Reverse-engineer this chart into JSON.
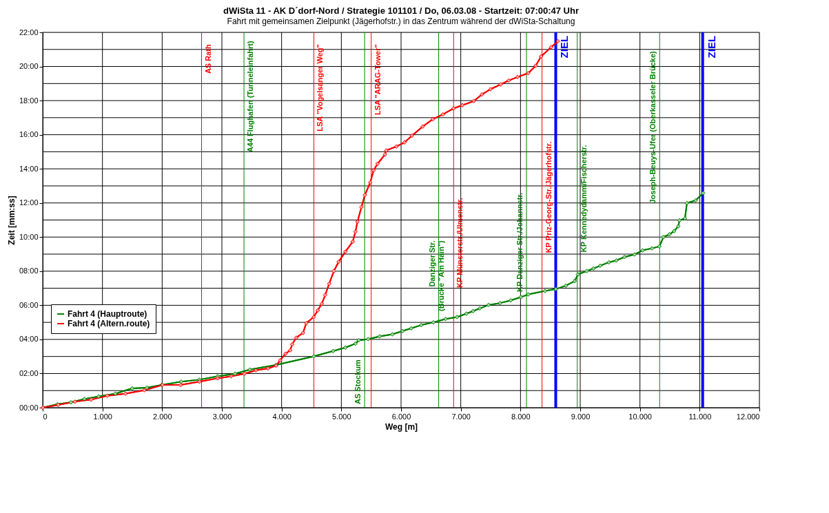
{
  "chart_data": {
    "type": "line",
    "title": "dWiSta 11 - AK D´dorf-Nord / Strategie 101101 / Do, 06.03.08 - Startzeit: 07:00:47 Uhr",
    "subtitle": "Fahrt mit gemeinsamen Zielpunkt (Jägerhofstr.) in das Zentrum während der dWiSta-Schaltung",
    "xlabel": "Weg [m]",
    "ylabel": "Zeit [mm:ss]",
    "xlim": [
      0,
      12000
    ],
    "xticks": [
      0,
      {
        "value": 1000,
        "label": "1.000"
      },
      {
        "value": 2000,
        "label": "2.000"
      },
      {
        "value": 3000,
        "label": "3.000"
      },
      {
        "value": 4000,
        "label": "4.000"
      },
      {
        "value": 5000,
        "label": "5.000"
      },
      {
        "value": 6000,
        "label": "6.000"
      },
      {
        "value": 7000,
        "label": "7.000"
      },
      {
        "value": 8000,
        "label": "8.000"
      },
      {
        "value": 9000,
        "label": "9.000"
      },
      {
        "value": 10000,
        "label": "10.000"
      },
      {
        "value": 11000,
        "label": "11.000"
      },
      {
        "value": 12000,
        "label": "12.000"
      }
    ],
    "ylim": [
      0,
      22
    ],
    "yticks": [
      {
        "value": 0,
        "label": "00:00"
      },
      {
        "value": 1,
        "label": null
      },
      {
        "value": 2,
        "label": "02:00"
      },
      {
        "value": 3,
        "label": null
      },
      {
        "value": 4,
        "label": "04:00"
      },
      {
        "value": 5,
        "label": null
      },
      {
        "value": 6,
        "label": "06:00"
      },
      {
        "value": 7,
        "label": null
      },
      {
        "value": 8,
        "label": "08:00"
      },
      {
        "value": 9,
        "label": null
      },
      {
        "value": 10,
        "label": "10:00"
      },
      {
        "value": 11,
        "label": null
      },
      {
        "value": 12,
        "label": "12:00"
      },
      {
        "value": 13,
        "label": null
      },
      {
        "value": 14,
        "label": "14:00"
      },
      {
        "value": 15,
        "label": null
      },
      {
        "value": 16,
        "label": "16:00"
      },
      {
        "value": 17,
        "label": null
      },
      {
        "value": 18,
        "label": "18:00"
      },
      {
        "value": 19,
        "label": null
      },
      {
        "value": 20,
        "label": "20:00"
      },
      {
        "value": 21,
        "label": null
      },
      {
        "value": 22,
        "label": "22:00"
      }
    ],
    "grid": true,
    "legend": "bottom left",
    "marker": "diamond",
    "line_style": "solid",
    "series": [
      {
        "name": "Fahrt 4 (Hauptroute)",
        "color": "#008000",
        "x": [
          0,
          248,
          473,
          698,
          935,
          1216,
          1498,
          1745,
          1993,
          2320,
          2624,
          2928,
          3220,
          3468,
          3907,
          4538,
          4864,
          5067,
          5236,
          5292,
          5450,
          5641,
          5855,
          6024,
          6170,
          6339,
          6542,
          6745,
          6936,
          7094,
          7206,
          7319,
          7465,
          7657,
          7837,
          8006,
          8130,
          8411,
          8591,
          8760,
          8907,
          8963,
          9109,
          9222,
          9335,
          9481,
          9605,
          9740,
          9909,
          10044,
          10202,
          10325,
          10393,
          10494,
          10573,
          10641,
          10663,
          10753,
          10787,
          10933,
          11057
        ],
        "values": [
          0,
          0.2,
          0.31,
          0.51,
          0.66,
          0.82,
          1.13,
          1.17,
          1.33,
          1.52,
          1.64,
          1.84,
          1.99,
          2.23,
          2.5,
          3.01,
          3.32,
          3.52,
          3.75,
          3.95,
          4.02,
          4.18,
          4.3,
          4.49,
          4.65,
          4.84,
          5.0,
          5.2,
          5.31,
          5.51,
          5.66,
          5.82,
          6.02,
          6.13,
          6.29,
          6.48,
          6.64,
          6.84,
          6.95,
          7.15,
          7.42,
          7.81,
          8.01,
          8.16,
          8.32,
          8.52,
          8.63,
          8.83,
          8.98,
          9.22,
          9.34,
          9.45,
          10.0,
          10.16,
          10.35,
          10.63,
          10.98,
          11.09,
          11.99,
          12.15,
          12.58
        ]
      },
      {
        "name": "Fahrt 4 (Altern.route)",
        "color": "#ff0000",
        "x": [
          0,
          259,
          540,
          811,
          1081,
          1385,
          1700,
          2004,
          2308,
          2624,
          2928,
          3153,
          3378,
          3569,
          3772,
          3907,
          3975,
          4065,
          4144,
          4177,
          4245,
          4358,
          4414,
          4538,
          4605,
          4673,
          4729,
          4797,
          4876,
          4954,
          5067,
          5191,
          5236,
          5270,
          5337,
          5394,
          5484,
          5540,
          5607,
          5731,
          5754,
          5923,
          6058,
          6182,
          6362,
          6531,
          6700,
          6880,
          7026,
          7218,
          7353,
          7499,
          7668,
          7803,
          7950,
          8130,
          8254,
          8344,
          8513,
          8626
        ],
        "values": [
          0,
          0.16,
          0.35,
          0.47,
          0.7,
          0.82,
          1.02,
          1.33,
          1.33,
          1.52,
          1.72,
          1.84,
          1.99,
          2.19,
          2.3,
          2.46,
          2.77,
          3.16,
          3.36,
          3.71,
          4.1,
          4.38,
          4.96,
          5.31,
          5.7,
          6.09,
          6.6,
          7.27,
          8.01,
          8.55,
          9.14,
          9.73,
          10.31,
          10.9,
          11.76,
          12.46,
          13.2,
          13.91,
          14.3,
          14.84,
          15.08,
          15.31,
          15.55,
          15.94,
          16.48,
          16.91,
          17.19,
          17.54,
          17.73,
          17.97,
          18.36,
          18.67,
          18.95,
          19.18,
          19.38,
          19.61,
          20.04,
          20.59,
          21.13,
          21.48
        ]
      }
    ],
    "ref_lines": [
      {
        "axis": "x",
        "value": 2660,
        "label": "AS Rath",
        "color": "#ff0000"
      },
      {
        "axis": "x",
        "value": 3370,
        "label": "A44 Flughafen (Tunneleinfahrt)",
        "color": "#008000"
      },
      {
        "axis": "x",
        "value": 4540,
        "label": "LSA \"Vogelsanger Weg\"",
        "color": "#ff0000"
      },
      {
        "axis": "x",
        "value": 5390,
        "label": "AS Stockum",
        "color": "#008000"
      },
      {
        "axis": "x",
        "value": 5500,
        "label": "LSA \"ARAG-Tower\"",
        "color": "#ff0000"
      },
      {
        "axis": "x",
        "value": 6630,
        "label": "Danziger Str.\n(Brücke \"Am Hain\")",
        "color": "#008000"
      },
      {
        "axis": "x",
        "value": 6880,
        "label": "KP Münsterstr./Ulmenstr.",
        "color": "#ff0000"
      },
      {
        "axis": "x",
        "value": 8100,
        "label": "KP Danziger Str./Johannstr.",
        "color": "#008000"
      },
      {
        "axis": "x",
        "value": 8360,
        "label": "KP Priz-Georg-Str./Jägerhofstr.",
        "color": "#ff0000"
      },
      {
        "axis": "x",
        "value": 8590,
        "label": "ZIEL",
        "color": "#0000ff"
      },
      {
        "axis": "x",
        "value": 8950,
        "label": "KP Kennedydamm/Fischerstr.",
        "color": "#008000"
      },
      {
        "axis": "x",
        "value": 10330,
        "label": "Joseph-Beuys-Ufer (Oberkasseler Brücke)",
        "color": "#008000"
      },
      {
        "axis": "x",
        "value": 11050,
        "label": "ZIEL",
        "color": "#0000ff"
      }
    ]
  }
}
